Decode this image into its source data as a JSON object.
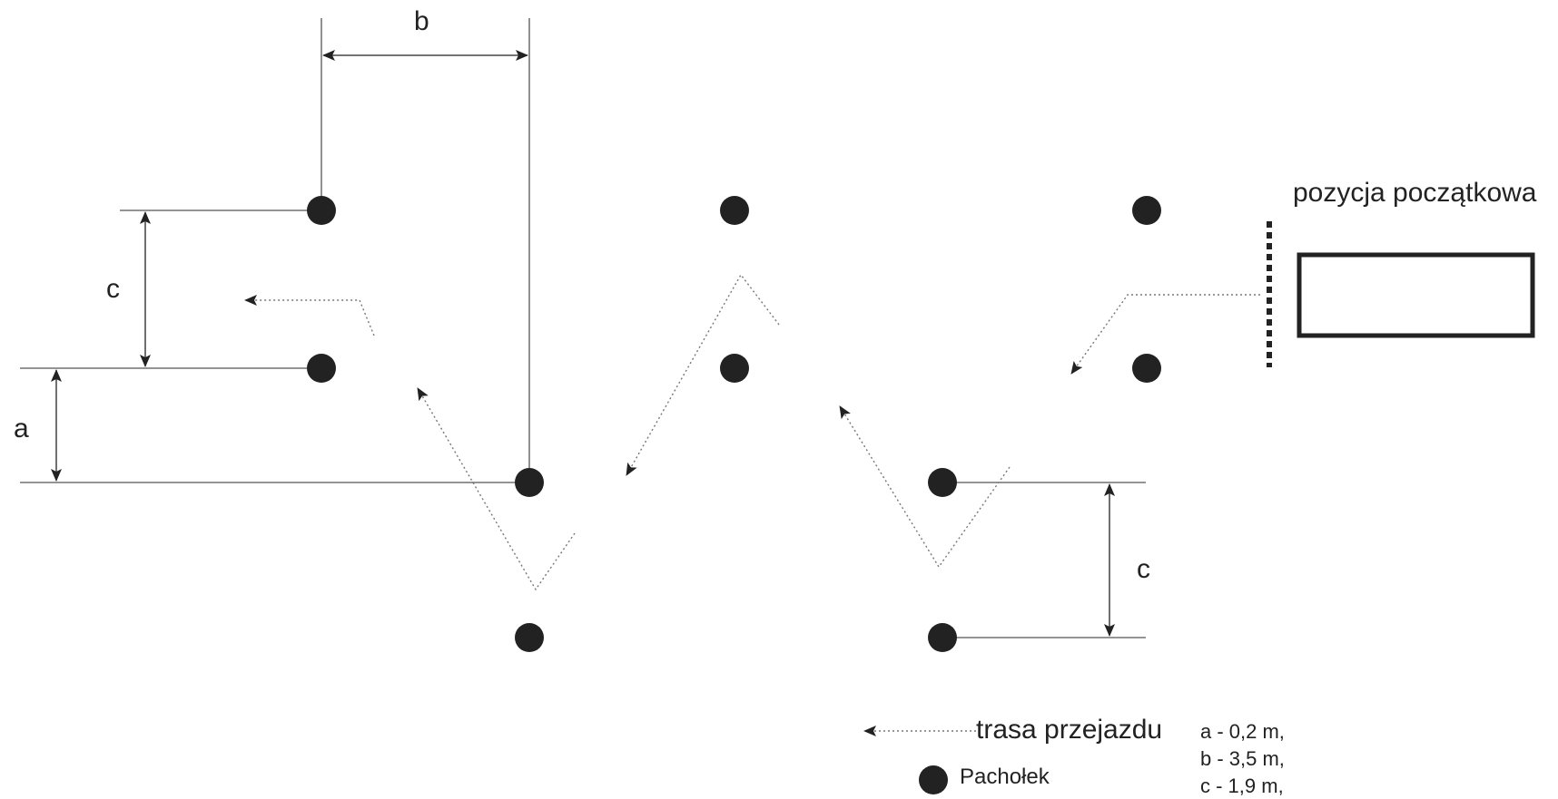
{
  "labels": {
    "start_position": "pozycja początkowa",
    "dim_a": "a",
    "dim_b": "b",
    "dim_c_left": "c",
    "dim_c_right": "c"
  },
  "legend": {
    "route": "trasa przejazdu",
    "cone": "Pachołek"
  },
  "notes": {
    "a": "a - 0,2 m,",
    "b": "b - 3,5 m,",
    "c": "c - 1,9 m,"
  },
  "colors": {
    "ink": "#222222",
    "route": "#777777",
    "guide": "#555555"
  }
}
